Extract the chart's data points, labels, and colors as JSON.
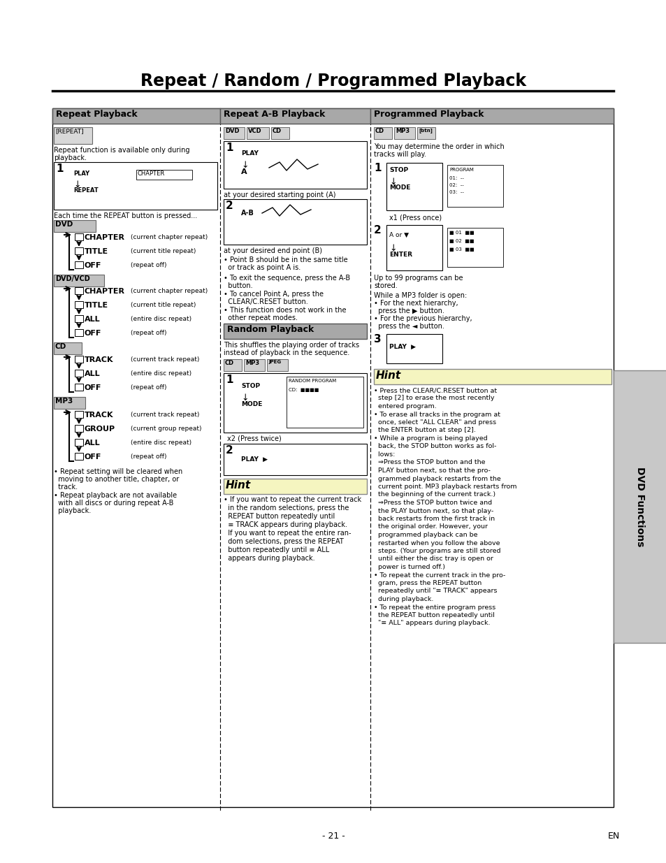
{
  "title": "Repeat / Random / Programmed Playback",
  "bg_color": "#ffffff",
  "page_num": "- 21 -",
  "lang": "EN",
  "col1_header": "Repeat Playback",
  "col2_header": "Repeat A-B Playback",
  "col3_header": "Programmed Playback",
  "dvd_sidebar": "DVD Functions",
  "random_header": "Random Playback",
  "hint_label": "Hint",
  "c1": 75,
  "c2": 315,
  "c3": 530,
  "ce": 878,
  "sb": 878
}
